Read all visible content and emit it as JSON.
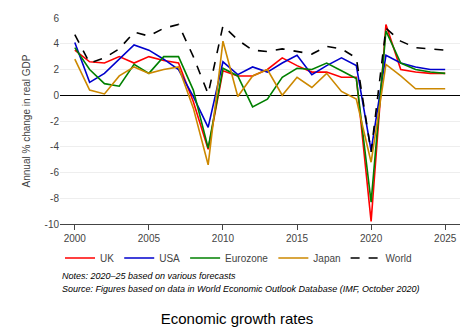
{
  "chart_data": {
    "type": "line",
    "title": "Economic growth rates",
    "ylabel": "Annual % change in real GDP",
    "annotations": [
      "Notes: 2020–25 based on various forecasts",
      "Source: Figures based on data in World Economic Outlook Database (IMF, October 2020)"
    ],
    "x": [
      2000,
      2001,
      2002,
      2003,
      2004,
      2005,
      2006,
      2007,
      2008,
      2009,
      2010,
      2011,
      2012,
      2013,
      2014,
      2015,
      2016,
      2017,
      2018,
      2019,
      2020,
      2021,
      2022,
      2023,
      2024,
      2025
    ],
    "series": [
      {
        "name": "UK",
        "color": "#ff0000",
        "line_style": "solid",
        "values": [
          3.5,
          2.6,
          2.5,
          3.0,
          2.5,
          3.0,
          2.7,
          2.5,
          -0.5,
          -4.2,
          1.9,
          1.5,
          1.5,
          2.0,
          2.9,
          2.3,
          1.8,
          1.8,
          1.4,
          1.4,
          -9.8,
          5.5,
          2.0,
          1.8,
          1.7,
          1.7
        ]
      },
      {
        "name": "USA",
        "color": "#0000cc",
        "line_style": "solid",
        "values": [
          4.1,
          1.0,
          1.7,
          2.8,
          3.9,
          3.5,
          2.8,
          2.0,
          -0.1,
          -2.5,
          2.6,
          1.6,
          2.2,
          1.8,
          2.5,
          3.1,
          1.6,
          2.3,
          2.9,
          2.3,
          -4.3,
          3.1,
          2.5,
          2.2,
          2.0,
          2.0
        ]
      },
      {
        "name": "Eurozone",
        "color": "#008000",
        "line_style": "solid",
        "values": [
          3.7,
          2.0,
          0.9,
          0.7,
          2.4,
          1.7,
          3.0,
          3.0,
          0.4,
          -4.1,
          2.1,
          1.5,
          -0.9,
          -0.3,
          1.4,
          2.1,
          2.0,
          2.5,
          1.9,
          1.3,
          -8.3,
          5.0,
          2.5,
          2.0,
          1.8,
          1.7
        ]
      },
      {
        "name": "Japan",
        "color": "#cc8800",
        "line_style": "solid",
        "values": [
          2.8,
          0.4,
          0.1,
          1.5,
          2.2,
          1.7,
          2.0,
          2.2,
          -1.0,
          -5.4,
          4.2,
          -0.1,
          1.5,
          2.0,
          0.0,
          1.4,
          0.6,
          1.7,
          0.3,
          -0.3,
          -5.2,
          2.4,
          1.5,
          0.5,
          0.5,
          0.5
        ]
      },
      {
        "name": "World",
        "color": "#000000",
        "line_style": "dashed",
        "values": [
          4.7,
          2.5,
          2.9,
          3.6,
          4.9,
          4.6,
          5.2,
          5.5,
          3.0,
          0.1,
          5.4,
          4.3,
          3.5,
          3.4,
          3.6,
          3.4,
          3.2,
          3.8,
          3.6,
          2.9,
          -4.4,
          5.2,
          4.2,
          3.7,
          3.6,
          3.5
        ]
      }
    ],
    "xlim": [
      1999,
      2026
    ],
    "xticks": [
      2000,
      2005,
      2010,
      2015,
      2020,
      2025
    ],
    "ylim": [
      -10,
      6
    ],
    "yticks": [
      -10,
      -8,
      -6,
      -4,
      -2,
      0,
      2,
      4,
      6
    ],
    "grid": true
  }
}
